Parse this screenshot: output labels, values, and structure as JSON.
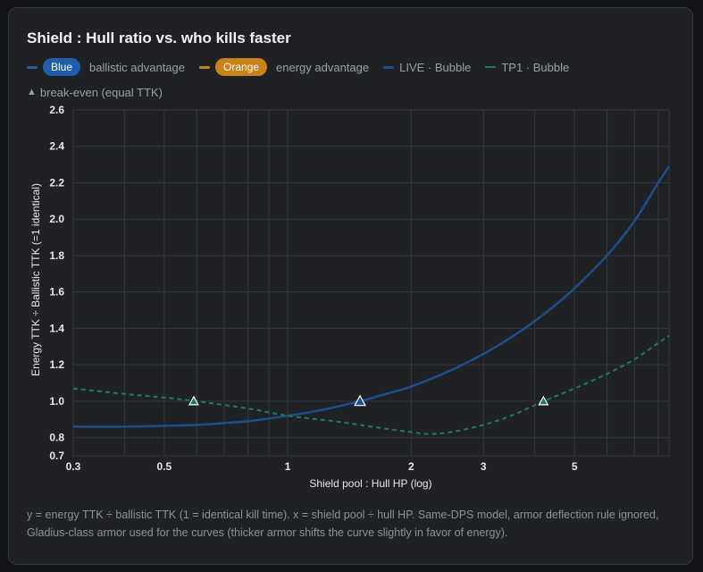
{
  "title": "Shield : Hull ratio vs. who kills faster",
  "legend": {
    "blue_pill": "Blue",
    "blue_text": "ballistic advantage",
    "orange_pill": "Orange",
    "orange_text": "energy advantage",
    "live_text": "LIVE · Bubble",
    "tp1_text": "TP1 · Bubble",
    "breakeven_text": "break-even (equal TTK)"
  },
  "colors": {
    "background": "#1f2125",
    "blue": "#1f5ea8",
    "orange": "#c98218",
    "live_line": "#1d4f8c",
    "tp1_line": "#1f7a5c",
    "grid": "#35383e"
  },
  "footnote": "y = energy TTK ÷ ballistic TTK (1 = identical kill time). x = shield pool ÷ hull HP. Same-DPS model, armor deflection rule ignored, Gladius-class armor used for the curves (thicker armor shifts the curve slightly in favor of energy).",
  "chart_data": {
    "type": "line",
    "xscale": "log",
    "xlim": [
      0.3,
      8.5
    ],
    "ylim": [
      0.7,
      2.6
    ],
    "xlabel": "Shield pool : Hull HP (log)",
    "ylabel": "Energy TTK ÷ Ballistic TTK (=1 identical)",
    "x_ticks": [
      0.3,
      0.5,
      1,
      2,
      3,
      5
    ],
    "x_tick_labels": [
      "0.3",
      "0.5",
      "1",
      "2",
      "3",
      "5"
    ],
    "y_ticks": [
      0.7,
      0.8,
      1.0,
      1.2,
      1.4,
      1.6,
      1.8,
      2.0,
      2.2,
      2.4,
      2.6
    ],
    "y_tick_labels": [
      "0.7",
      "0.8",
      "1.0",
      "1.2",
      "1.4",
      "1.6",
      "1.8",
      "2.0",
      "2.2",
      "2.4",
      "2.6"
    ],
    "grid": true,
    "series": [
      {
        "name": "LIVE · Bubble",
        "style": "solid",
        "x": [
          0.3,
          0.4,
          0.5,
          0.6,
          0.7,
          0.8,
          0.9,
          1.0,
          1.2,
          1.5,
          1.8,
          2.0,
          2.5,
          3.0,
          3.5,
          4.0,
          4.5,
          5.0,
          6.0,
          7.0,
          8.0,
          8.5
        ],
        "y": [
          0.86,
          0.86,
          0.865,
          0.87,
          0.88,
          0.89,
          0.905,
          0.92,
          0.95,
          1.0,
          1.05,
          1.08,
          1.17,
          1.26,
          1.35,
          1.44,
          1.53,
          1.62,
          1.8,
          1.99,
          2.2,
          2.29
        ]
      },
      {
        "name": "TP1 · Bubble",
        "style": "dashed",
        "x": [
          0.3,
          0.4,
          0.5,
          0.6,
          0.8,
          1.0,
          1.3,
          1.6,
          2.0,
          2.2,
          2.5,
          3.0,
          3.5,
          4.2,
          5.0,
          6.0,
          7.0,
          8.0,
          8.5
        ],
        "y": [
          1.07,
          1.04,
          1.02,
          1.0,
          0.96,
          0.92,
          0.89,
          0.86,
          0.83,
          0.82,
          0.83,
          0.87,
          0.92,
          1.0,
          1.07,
          1.15,
          1.23,
          1.32,
          1.36
        ]
      }
    ],
    "break_even_points": [
      {
        "series": "TP1 · Bubble",
        "x": 0.59,
        "y": 1.0
      },
      {
        "series": "LIVE · Bubble",
        "x": 1.5,
        "y": 1.0
      },
      {
        "series": "TP1 · Bubble",
        "x": 4.2,
        "y": 1.0
      }
    ]
  }
}
